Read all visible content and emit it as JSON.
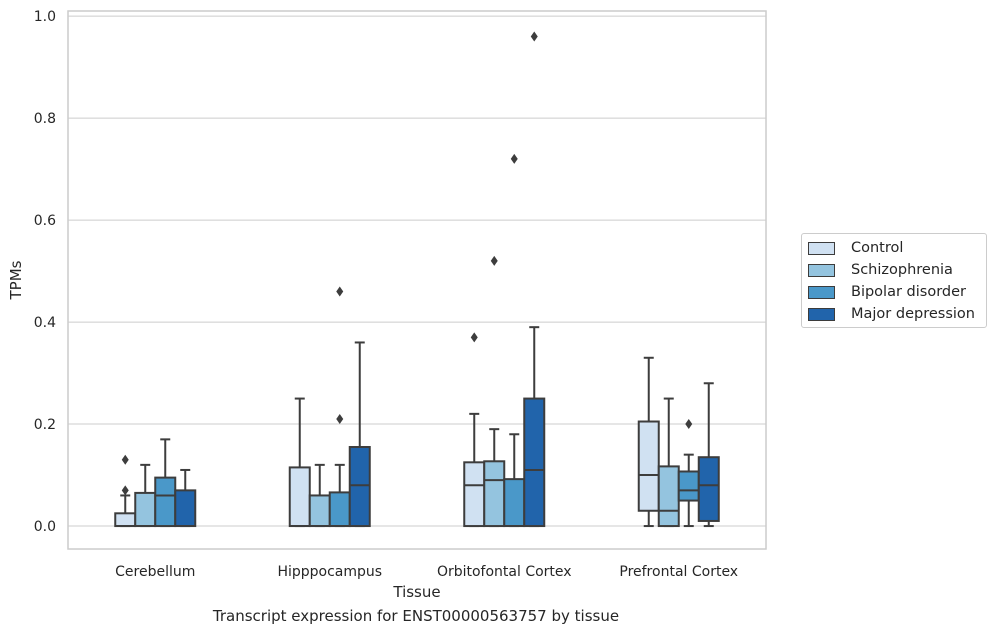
{
  "chart_data": {
    "type": "box",
    "title": "",
    "caption": "Transcript expression for ENST00000563757 by tissue",
    "xlabel": "Tissue",
    "ylabel": "TPMs",
    "ylim": [
      -0.045,
      1.01
    ],
    "yticks": [
      "0.0",
      "0.2",
      "0.4",
      "0.6",
      "0.8",
      "1.0"
    ],
    "grid": true,
    "legend_position": "right",
    "categories": [
      "Cerebellum",
      "Hipppocampus",
      "Orbitofontal Cortex",
      "Prefrontal Cortex"
    ],
    "series": [
      {
        "name": "Control",
        "color": "#d0e1f2",
        "boxes": [
          {
            "whisker_low": 0.0,
            "q1": 0.0,
            "median": 0.0,
            "q3": 0.025,
            "whisker_high": 0.06,
            "outliers": [
              0.13,
              0.07
            ]
          },
          {
            "whisker_low": 0.0,
            "q1": 0.0,
            "median": 0.0,
            "q3": 0.115,
            "whisker_high": 0.25,
            "outliers": []
          },
          {
            "whisker_low": 0.0,
            "q1": 0.0,
            "median": 0.08,
            "q3": 0.125,
            "whisker_high": 0.22,
            "outliers": [
              0.37
            ]
          },
          {
            "whisker_low": 0.0,
            "q1": 0.03,
            "median": 0.1,
            "q3": 0.205,
            "whisker_high": 0.33,
            "outliers": []
          }
        ]
      },
      {
        "name": "Schizophrenia",
        "color": "#94c4df",
        "boxes": [
          {
            "whisker_low": 0.0,
            "q1": 0.0,
            "median": 0.0,
            "q3": 0.065,
            "whisker_high": 0.12,
            "outliers": []
          },
          {
            "whisker_low": 0.0,
            "q1": 0.0,
            "median": 0.0,
            "q3": 0.06,
            "whisker_high": 0.12,
            "outliers": []
          },
          {
            "whisker_low": 0.0,
            "q1": 0.0,
            "median": 0.09,
            "q3": 0.127,
            "whisker_high": 0.19,
            "outliers": [
              0.52
            ]
          },
          {
            "whisker_low": 0.0,
            "q1": 0.0,
            "median": 0.03,
            "q3": 0.117,
            "whisker_high": 0.25,
            "outliers": []
          }
        ]
      },
      {
        "name": "Bipolar disorder",
        "color": "#4a98c9",
        "boxes": [
          {
            "whisker_low": 0.0,
            "q1": 0.0,
            "median": 0.06,
            "q3": 0.095,
            "whisker_high": 0.17,
            "outliers": []
          },
          {
            "whisker_low": 0.0,
            "q1": 0.0,
            "median": 0.0,
            "q3": 0.066,
            "whisker_high": 0.12,
            "outliers": [
              0.46,
              0.21
            ]
          },
          {
            "whisker_low": 0.0,
            "q1": 0.0,
            "median": 0.0,
            "q3": 0.092,
            "whisker_high": 0.18,
            "outliers": [
              0.72
            ]
          },
          {
            "whisker_low": 0.0,
            "q1": 0.05,
            "median": 0.07,
            "q3": 0.107,
            "whisker_high": 0.14,
            "outliers": [
              0.2
            ]
          }
        ]
      },
      {
        "name": "Major depression",
        "color": "#2164ab",
        "boxes": [
          {
            "whisker_low": 0.0,
            "q1": 0.0,
            "median": 0.0,
            "q3": 0.07,
            "whisker_high": 0.11,
            "outliers": []
          },
          {
            "whisker_low": 0.0,
            "q1": 0.0,
            "median": 0.08,
            "q3": 0.155,
            "whisker_high": 0.36,
            "outliers": []
          },
          {
            "whisker_low": 0.0,
            "q1": 0.0,
            "median": 0.11,
            "q3": 0.25,
            "whisker_high": 0.39,
            "outliers": [
              0.96
            ]
          },
          {
            "whisker_low": 0.0,
            "q1": 0.01,
            "median": 0.08,
            "q3": 0.135,
            "whisker_high": 0.28,
            "outliers": []
          }
        ]
      }
    ]
  }
}
